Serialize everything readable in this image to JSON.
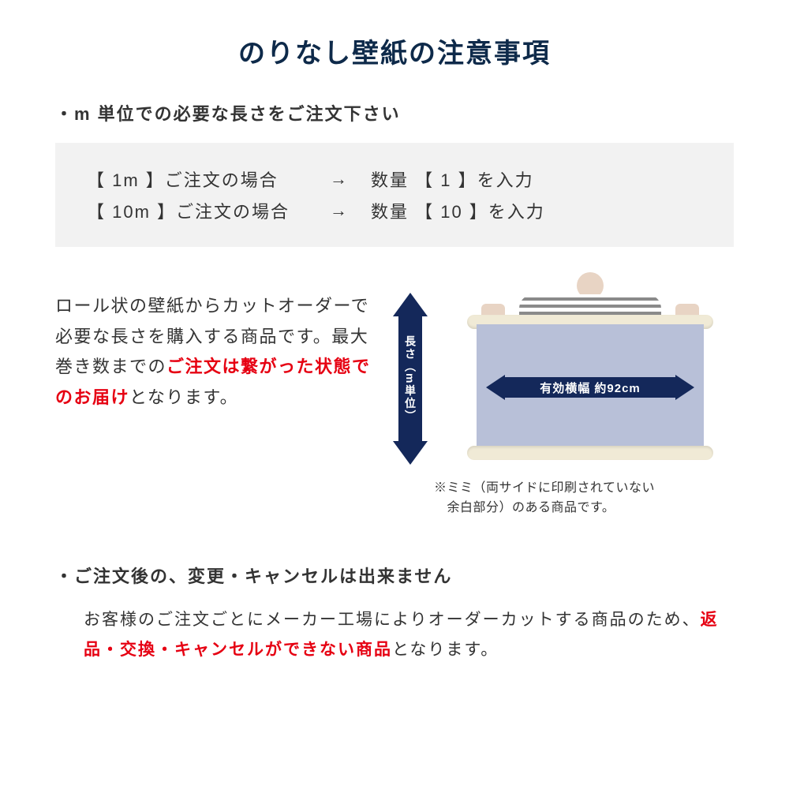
{
  "colors": {
    "title": "#0e2a4a",
    "text": "#333333",
    "highlight": "#e60012",
    "box_bg": "#f2f2f2",
    "arrow": "#14285a",
    "sheet": "#b8c0d8",
    "roll": "#f0ead6"
  },
  "title": "のりなし壁紙の注意事項",
  "bullet1": "・m 単位での必要な長さをご注文下さい",
  "table": {
    "rows": [
      {
        "left": "【 1m 】ご注文の場合",
        "arrow": "→",
        "right": "数量 【 1 】を入力"
      },
      {
        "left": "【 10m 】ご注文の場合",
        "arrow": "→",
        "right": "数量 【 10 】を入力"
      }
    ]
  },
  "mid": {
    "p1a": "ロール状の壁紙からカットオーダーで必要な長さを購入する商品です。最大巻き数までの",
    "p1_red": "ご注文は繋がった状態でのお届け",
    "p1b": "となります。"
  },
  "diagram": {
    "vertical_label": "長さ（m単位）",
    "horizontal_label": "有効横幅 約92cm",
    "mimi_note_l1": "※ミミ（両サイドに印刷されていない",
    "mimi_note_l2": "　余白部分）のある商品です。"
  },
  "bullet2": "・ご注文後の、変更・キャンセルは出来ません",
  "body2": {
    "a": "お客様のご注文ごとにメーカー工場によりオーダーカットする商品のため、",
    "red": "返品・交換・キャンセルができない商品",
    "b": "となります。"
  }
}
